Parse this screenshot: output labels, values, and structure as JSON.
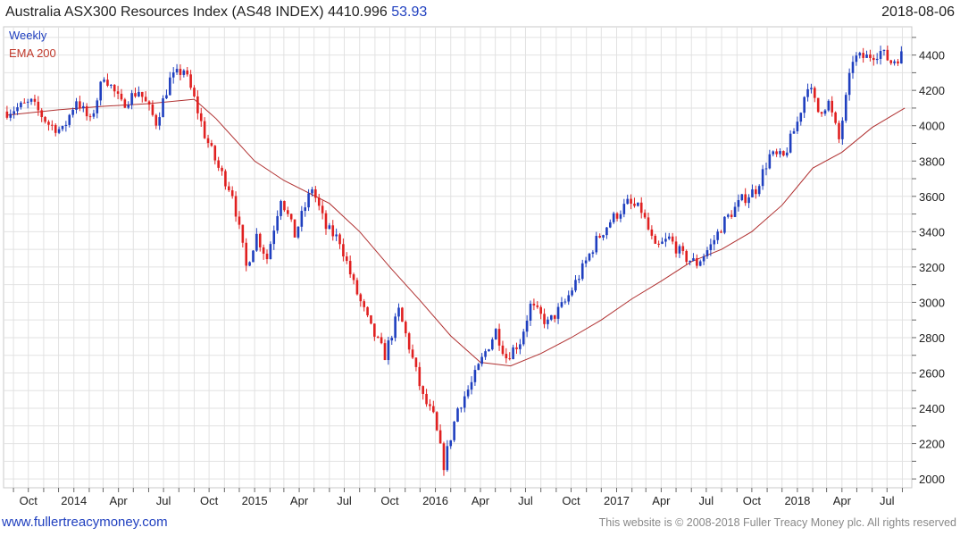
{
  "header": {
    "title": "Australia ASX300 Resources Index (AS48 INDEX) 4410.996",
    "change": "53.93",
    "date": "2018-08-06"
  },
  "legend": {
    "series1": "Weekly",
    "series2": "EMA 200"
  },
  "footer": {
    "website": "www.fullertreacymoney.com",
    "copyright": "This website is © 2008-2018 Fuller Treacy Money plc. All rights reserved"
  },
  "colors": {
    "up": "#1f3fbf",
    "down": "#e02020",
    "ema": "#b03030",
    "grid": "#e2e2e2"
  },
  "chart_data": {
    "type": "candlestick",
    "x_labels": [
      "Oct",
      "2014",
      "Apr",
      "Jul",
      "Oct",
      "2015",
      "Apr",
      "Jul",
      "Oct",
      "2016",
      "Apr",
      "Jul",
      "Oct",
      "2017",
      "Apr",
      "Jul",
      "Oct",
      "2018",
      "Apr",
      "Jul"
    ],
    "x_label_dates": [
      "2013-10-01",
      "2014-01-01",
      "2014-04-01",
      "2014-07-01",
      "2014-10-01",
      "2015-01-01",
      "2015-04-01",
      "2015-07-01",
      "2015-10-01",
      "2016-01-01",
      "2016-04-01",
      "2016-07-01",
      "2016-10-01",
      "2017-01-01",
      "2017-04-01",
      "2017-07-01",
      "2017-10-01",
      "2018-01-01",
      "2018-04-01",
      "2018-07-01"
    ],
    "x_range": [
      "2013-08-12",
      "2018-08-20"
    ],
    "y_ticks": [
      2000,
      2200,
      2400,
      2600,
      2800,
      3000,
      3200,
      3400,
      3600,
      3800,
      4000,
      4200,
      4400
    ],
    "ylim": [
      1950,
      4560
    ],
    "grid": true,
    "legend_placement": "top-left",
    "series": [
      {
        "name": "Weekly",
        "kind": "close",
        "anchors": [
          [
            "2013-08-19",
            4080
          ],
          [
            "2013-10-07",
            4130
          ],
          [
            "2013-11-11",
            4010
          ],
          [
            "2013-12-09",
            3970
          ],
          [
            "2014-01-06",
            4150
          ],
          [
            "2014-02-03",
            4020
          ],
          [
            "2014-03-03",
            4290
          ],
          [
            "2014-04-07",
            4120
          ],
          [
            "2014-05-12",
            4200
          ],
          [
            "2014-06-16",
            4020
          ],
          [
            "2014-07-14",
            4260
          ],
          [
            "2014-08-11",
            4320
          ],
          [
            "2014-09-01",
            4150
          ],
          [
            "2014-09-22",
            3950
          ],
          [
            "2014-10-20",
            3760
          ],
          [
            "2014-11-17",
            3620
          ],
          [
            "2014-12-15",
            3200
          ],
          [
            "2015-01-05",
            3380
          ],
          [
            "2015-01-26",
            3250
          ],
          [
            "2015-02-23",
            3600
          ],
          [
            "2015-03-23",
            3380
          ],
          [
            "2015-04-27",
            3650
          ],
          [
            "2015-05-25",
            3420
          ],
          [
            "2015-06-22",
            3350
          ],
          [
            "2015-07-20",
            3100
          ],
          [
            "2015-08-24",
            2850
          ],
          [
            "2015-09-21",
            2700
          ],
          [
            "2015-10-19",
            2950
          ],
          [
            "2015-11-09",
            2750
          ],
          [
            "2015-12-07",
            2460
          ],
          [
            "2015-12-28",
            2350
          ],
          [
            "2016-01-18",
            2080
          ],
          [
            "2016-02-15",
            2400
          ],
          [
            "2016-03-14",
            2540
          ],
          [
            "2016-04-11",
            2720
          ],
          [
            "2016-05-02",
            2840
          ],
          [
            "2016-05-23",
            2690
          ],
          [
            "2016-06-20",
            2780
          ],
          [
            "2016-07-11",
            2980
          ],
          [
            "2016-08-15",
            2880
          ],
          [
            "2016-09-19",
            3000
          ],
          [
            "2016-10-17",
            3150
          ],
          [
            "2016-11-21",
            3350
          ],
          [
            "2016-12-19",
            3460
          ],
          [
            "2017-01-23",
            3560
          ],
          [
            "2017-02-20",
            3520
          ],
          [
            "2017-03-20",
            3300
          ],
          [
            "2017-04-17",
            3360
          ],
          [
            "2017-05-15",
            3260
          ],
          [
            "2017-06-12",
            3220
          ],
          [
            "2017-07-10",
            3320
          ],
          [
            "2017-08-07",
            3460
          ],
          [
            "2017-09-11",
            3580
          ],
          [
            "2017-10-09",
            3640
          ],
          [
            "2017-11-06",
            3830
          ],
          [
            "2017-12-04",
            3820
          ],
          [
            "2018-01-01",
            4020
          ],
          [
            "2018-01-22",
            4240
          ],
          [
            "2018-02-12",
            4080
          ],
          [
            "2018-03-05",
            4130
          ],
          [
            "2018-03-26",
            3920
          ],
          [
            "2018-04-23",
            4380
          ],
          [
            "2018-05-21",
            4390
          ],
          [
            "2018-06-18",
            4420
          ],
          [
            "2018-07-09",
            4360
          ],
          [
            "2018-07-30",
            4400
          ]
        ]
      },
      {
        "name": "EMA 200",
        "kind": "line",
        "points": [
          [
            "2013-08-19",
            4060
          ],
          [
            "2013-12-01",
            4090
          ],
          [
            "2014-03-01",
            4110
          ],
          [
            "2014-06-01",
            4125
          ],
          [
            "2014-09-01",
            4150
          ],
          [
            "2014-10-15",
            4040
          ],
          [
            "2015-01-01",
            3800
          ],
          [
            "2015-03-01",
            3690
          ],
          [
            "2015-06-01",
            3560
          ],
          [
            "2015-08-01",
            3400
          ],
          [
            "2015-10-01",
            3200
          ],
          [
            "2015-12-01",
            3010
          ],
          [
            "2016-02-01",
            2810
          ],
          [
            "2016-04-01",
            2660
          ],
          [
            "2016-06-01",
            2640
          ],
          [
            "2016-08-01",
            2710
          ],
          [
            "2016-10-01",
            2800
          ],
          [
            "2016-12-01",
            2900
          ],
          [
            "2017-02-01",
            3020
          ],
          [
            "2017-04-01",
            3120
          ],
          [
            "2017-06-01",
            3230
          ],
          [
            "2017-08-01",
            3300
          ],
          [
            "2017-10-01",
            3400
          ],
          [
            "2017-12-01",
            3550
          ],
          [
            "2018-02-01",
            3760
          ],
          [
            "2018-04-01",
            3850
          ],
          [
            "2018-06-01",
            3990
          ],
          [
            "2018-08-06",
            4100
          ]
        ]
      }
    ]
  }
}
